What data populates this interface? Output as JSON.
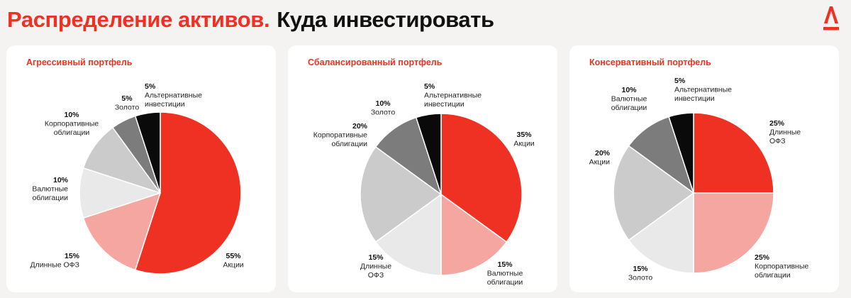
{
  "header": {
    "title_red": "Распределение активов.",
    "title_black": "Куда инвестировать"
  },
  "brand_color": "#ef3124",
  "logo_icon": "alfa-bank-logo-icon",
  "chart_data": [
    {
      "type": "pie",
      "title": "Агрессивный портфель",
      "slices": [
        {
          "pct": "55%",
          "value": 55,
          "label": [
            "Акции"
          ],
          "color": "#ef3124"
        },
        {
          "pct": "15%",
          "value": 15,
          "label": [
            "Длинные ОФЗ"
          ],
          "color": "#f6a6a0"
        },
        {
          "pct": "10%",
          "value": 10,
          "label": [
            "Валютные",
            "облигации"
          ],
          "color": "#e9e9e9"
        },
        {
          "pct": "10%",
          "value": 10,
          "label": [
            "Корпоративные",
            "облигации"
          ],
          "color": "#cbcbcb"
        },
        {
          "pct": "5%",
          "value": 5,
          "label": [
            "Золото"
          ],
          "color": "#7c7c7c"
        },
        {
          "pct": "5%",
          "value": 5,
          "label": [
            "Альтернативные",
            "инвестиции"
          ],
          "color": "#0a0a0a"
        }
      ]
    },
    {
      "type": "pie",
      "title": "Сбалансированный портфель",
      "slices": [
        {
          "pct": "35%",
          "value": 35,
          "label": [
            "Акции"
          ],
          "color": "#ef3124"
        },
        {
          "pct": "15%",
          "value": 15,
          "label": [
            "Валютные",
            "облигации"
          ],
          "color": "#f6a6a0"
        },
        {
          "pct": "15%",
          "value": 15,
          "label": [
            "Длинные",
            "ОФЗ"
          ],
          "color": "#e9e9e9"
        },
        {
          "pct": "20%",
          "value": 20,
          "label": [
            "Корпоративные",
            "облигации"
          ],
          "color": "#cbcbcb"
        },
        {
          "pct": "10%",
          "value": 10,
          "label": [
            "Золото"
          ],
          "color": "#7c7c7c"
        },
        {
          "pct": "5%",
          "value": 5,
          "label": [
            "Альтернативные",
            "инвестиции"
          ],
          "color": "#0a0a0a"
        }
      ]
    },
    {
      "type": "pie",
      "title": "Консервативный портфель",
      "slices": [
        {
          "pct": "25%",
          "value": 25,
          "label": [
            "Длинные",
            "ОФЗ"
          ],
          "color": "#ef3124"
        },
        {
          "pct": "25%",
          "value": 25,
          "label": [
            "Корпоративные",
            "облигации"
          ],
          "color": "#f6a6a0"
        },
        {
          "pct": "15%",
          "value": 15,
          "label": [
            "Золото"
          ],
          "color": "#e9e9e9"
        },
        {
          "pct": "20%",
          "value": 20,
          "label": [
            "Акции"
          ],
          "color": "#cbcbcb"
        },
        {
          "pct": "10%",
          "value": 10,
          "label": [
            "Валютные",
            "облигации"
          ],
          "color": "#7c7c7c"
        },
        {
          "pct": "5%",
          "value": 5,
          "label": [
            "Альтернативные",
            "инвестиции"
          ],
          "color": "#0a0a0a"
        }
      ]
    }
  ]
}
